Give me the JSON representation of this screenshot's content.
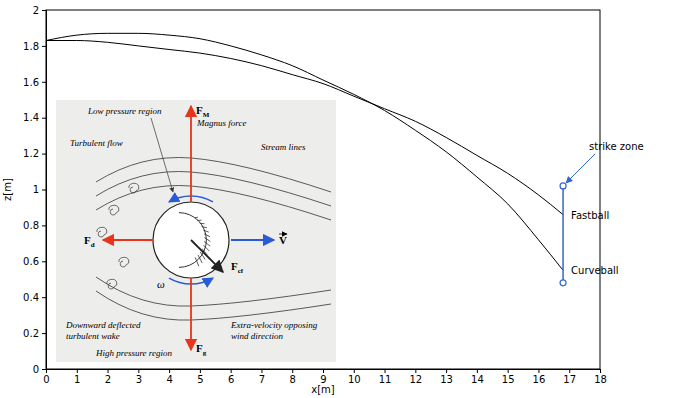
{
  "chart_data": {
    "type": "line",
    "x_label": "x[m]",
    "y_label": "z[m]",
    "x": [
      0,
      1,
      2,
      3,
      4,
      5,
      6,
      7,
      8,
      9,
      10,
      11,
      12,
      13,
      14,
      15,
      16,
      16.8
    ],
    "series": [
      {
        "name": "Fastball",
        "color": "#000000",
        "values": [
          1.83,
          1.83,
          1.82,
          1.8,
          1.78,
          1.76,
          1.73,
          1.69,
          1.64,
          1.59,
          1.52,
          1.45,
          1.38,
          1.29,
          1.19,
          1.09,
          0.97,
          0.86
        ]
      },
      {
        "name": "Curveball",
        "color": "#000000",
        "values": [
          1.83,
          1.86,
          1.87,
          1.87,
          1.86,
          1.84,
          1.8,
          1.75,
          1.69,
          1.61,
          1.53,
          1.44,
          1.33,
          1.21,
          1.07,
          0.92,
          0.72,
          0.55
        ]
      }
    ],
    "xlim": [
      0,
      18
    ],
    "ylim": [
      0,
      2
    ],
    "xticks": [
      0,
      1,
      2,
      3,
      4,
      5,
      6,
      7,
      8,
      9,
      10,
      11,
      12,
      13,
      14,
      15,
      16,
      17,
      18
    ],
    "yticks": [
      0,
      0.2,
      0.4,
      0.6,
      0.8,
      1,
      1.2,
      1.4,
      1.6,
      1.8,
      2
    ],
    "grid": false,
    "strike_zone": {
      "label": "strike zone",
      "x": 16.8,
      "z": [
        0.48,
        1.02
      ],
      "color": "#3366cc"
    }
  },
  "inset": {
    "labels": [
      {
        "lines": [
          "Low pressure region"
        ]
      },
      {
        "lines": [
          "Magnus force"
        ]
      },
      {
        "lines": [
          "Turbulent flow"
        ]
      },
      {
        "lines": [
          "Stream lines"
        ]
      },
      {
        "lines": [
          "Downward deflected",
          "turbulent wake"
        ]
      },
      {
        "lines": [
          "High pressure region"
        ]
      },
      {
        "lines": [
          "Extra-velocity opposing",
          "wind direction"
        ]
      }
    ],
    "forces": [
      {
        "symbol": "F",
        "sub": "M",
        "color": "#e8341c"
      },
      {
        "symbol": "F",
        "sub": "d",
        "color": "#e8341c"
      },
      {
        "symbol": "F",
        "sub": "g",
        "color": "#e8341c"
      },
      {
        "symbol": "F",
        "sub": "cf",
        "color": "#222222"
      },
      {
        "symbol": "V",
        "color": "#2a5bd7"
      }
    ],
    "spin": {
      "symbol": "ω",
      "color": "#2a5bd7"
    }
  }
}
